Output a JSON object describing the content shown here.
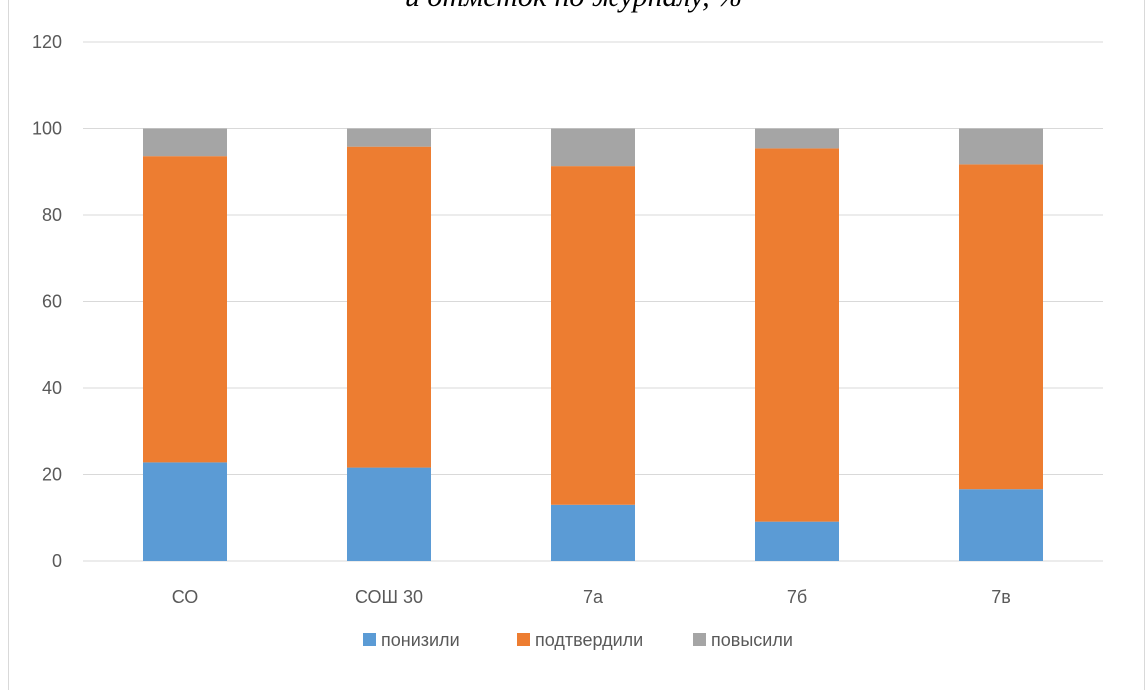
{
  "chart_data": {
    "type": "bar",
    "stacked": true,
    "title": "и отметок по журналу, %",
    "categories": [
      "СО",
      "СОШ 30",
      "7а",
      "7б",
      "7в"
    ],
    "series": [
      {
        "name": "понизили",
        "color": "#5b9bd5",
        "values": [
          22.8,
          21.6,
          13.0,
          9.1,
          16.6
        ]
      },
      {
        "name": "подтвердили",
        "color": "#ed7d31",
        "values": [
          70.8,
          74.2,
          78.3,
          86.3,
          75.1
        ]
      },
      {
        "name": "повысили",
        "color": "#a5a5a5",
        "values": [
          6.4,
          4.2,
          8.7,
          4.6,
          8.3
        ]
      }
    ],
    "ylim": [
      0,
      120
    ],
    "yticks": [
      "0",
      "20",
      "40",
      "60",
      "80",
      "100",
      "120"
    ],
    "grid": true,
    "legend": "bottom"
  }
}
